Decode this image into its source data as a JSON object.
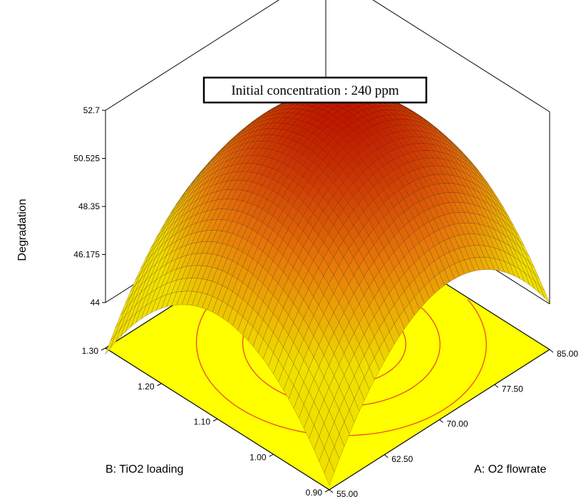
{
  "chart_data": {
    "type": "surface3d",
    "annotation": "Initial concentration : 240 ppm",
    "zlabel": "Degradation",
    "xlabel": "A: O2 flowrate",
    "ylabel": "B: TiO2 loading",
    "z_ticks": [
      "44",
      "46.175",
      "48.35",
      "50.525",
      "52.7"
    ],
    "x_ticks": [
      "55.00",
      "62.50",
      "70.00",
      "77.50",
      "85.00"
    ],
    "y_ticks": [
      "0.90",
      "1.00",
      "1.10",
      "1.20",
      "1.30"
    ],
    "zlim": [
      44,
      52.7
    ],
    "xlim": [
      55,
      85
    ],
    "ylim": [
      0.9,
      1.3
    ],
    "surface_model": {
      "center_x": 71.5,
      "center_y": 1.095,
      "z_max": 52.4,
      "curv_x": 9.5,
      "curv_y": 9.5
    },
    "corner_values": [
      {
        "x": 55,
        "y": 0.9,
        "z": 44.0
      },
      {
        "x": 85,
        "y": 0.9,
        "z": 44.0
      },
      {
        "x": 55,
        "y": 1.3,
        "z": 45.5
      },
      {
        "x": 85,
        "y": 1.3,
        "z": 45.5
      }
    ],
    "contour_levels": [
      48.35,
      50.525,
      51.6
    ],
    "colors": {
      "floor": "#ffff00",
      "contour": "#e8401c",
      "surface_low": "#f0e000",
      "surface_high": "#c01800"
    }
  }
}
